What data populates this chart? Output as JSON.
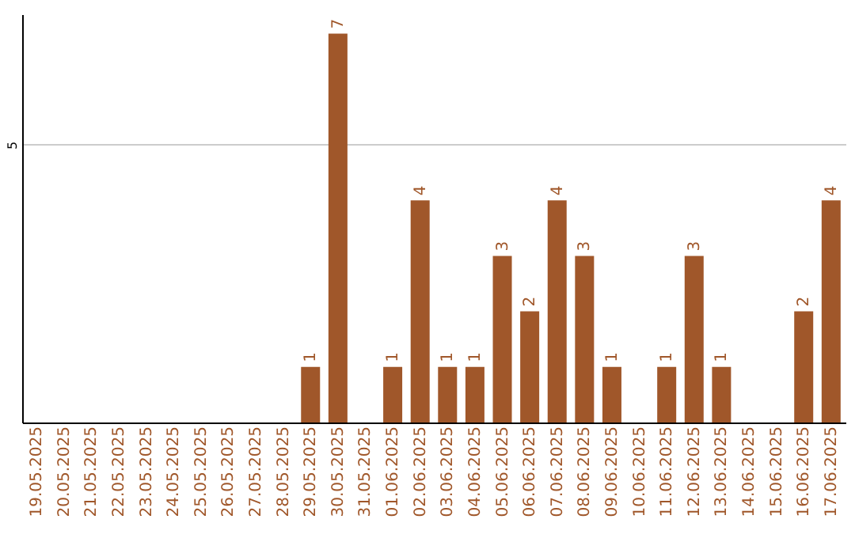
{
  "chart_data": {
    "type": "bar",
    "categories": [
      "19.05.2025",
      "20.05.2025",
      "21.05.2025",
      "22.05.2025",
      "23.05.2025",
      "24.05.2025",
      "25.05.2025",
      "26.05.2025",
      "27.05.2025",
      "28.05.2025",
      "29.05.2025",
      "30.05.2025",
      "31.05.2025",
      "01.06.2025",
      "02.06.2025",
      "03.06.2025",
      "04.06.2025",
      "05.06.2025",
      "06.06.2025",
      "07.06.2025",
      "08.06.2025",
      "09.06.2025",
      "10.06.2025",
      "11.06.2025",
      "12.06.2025",
      "13.06.2025",
      "14.06.2025",
      "15.06.2025",
      "16.06.2025",
      "17.06.2025"
    ],
    "values": [
      0,
      0,
      0,
      0,
      0,
      0,
      0,
      0,
      0,
      0,
      1,
      7,
      0,
      1,
      4,
      1,
      1,
      3,
      2,
      4,
      3,
      1,
      0,
      1,
      3,
      1,
      0,
      0,
      2,
      4
    ],
    "value_labels": [
      null,
      null,
      null,
      null,
      null,
      null,
      null,
      null,
      null,
      null,
      "1",
      "7",
      null,
      "1",
      "4",
      "1",
      "1",
      "3",
      "2",
      "4",
      "3",
      "1",
      null,
      "1",
      "3",
      "1",
      null,
      null,
      "2",
      "4"
    ],
    "color": "#a0572a",
    "ylim": [
      0,
      7.35
    ],
    "yticks": [
      5
    ],
    "grid": "y"
  }
}
